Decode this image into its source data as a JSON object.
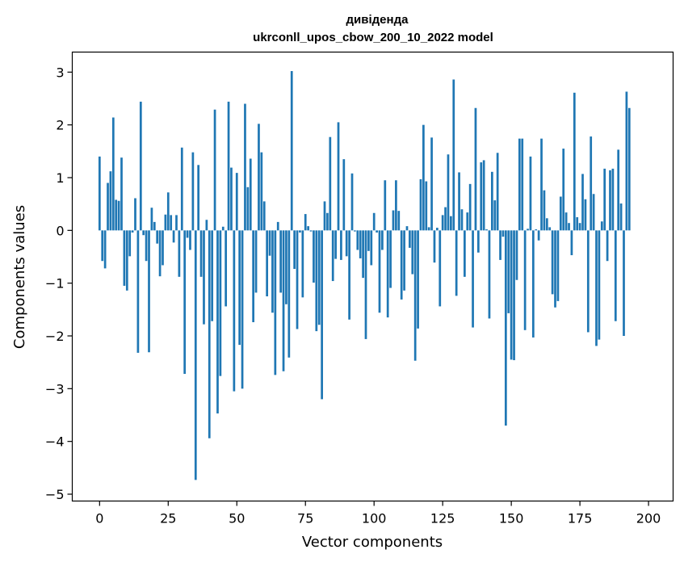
{
  "chart_data": {
    "type": "bar",
    "title": "дивіденда",
    "subtitle": "ukrconll_upos_cbow_200_10_2022 model",
    "xlabel": "Vector components",
    "ylabel": "Components values",
    "xlim": [
      -9.95,
      208.95
    ],
    "ylim": [
      -5.13,
      3.38
    ],
    "xticks": [
      0,
      25,
      50,
      75,
      100,
      125,
      150,
      175,
      200
    ],
    "xtick_labels": [
      "0",
      "25",
      "50",
      "75",
      "100",
      "125",
      "150",
      "175",
      "200"
    ],
    "yticks": [
      -5,
      -4,
      -3,
      -2,
      -1,
      0,
      1,
      2,
      3
    ],
    "ytick_labels": [
      "−5",
      "−4",
      "−3",
      "−2",
      "−1",
      "0",
      "1",
      "2",
      "3"
    ],
    "grid": false,
    "bar_color": "#1f77b4",
    "values": [
      1.4,
      -0.58,
      -0.72,
      0.9,
      1.12,
      2.14,
      0.58,
      0.56,
      1.38,
      -1.05,
      -1.14,
      -0.49,
      -0.04,
      0.61,
      -2.32,
      2.44,
      -0.09,
      -0.58,
      -2.31,
      0.43,
      0.16,
      -0.25,
      -0.87,
      -0.66,
      0.3,
      0.72,
      0.29,
      -0.23,
      0.29,
      -0.88,
      1.57,
      -2.72,
      -0.14,
      -0.37,
      1.48,
      -4.73,
      1.24,
      -0.88,
      -1.78,
      0.2,
      -3.94,
      -1.72,
      2.29,
      -3.47,
      -2.76,
      0.07,
      -1.44,
      2.44,
      1.19,
      -3.05,
      1.09,
      -2.17,
      -3.0,
      2.4,
      0.82,
      1.36,
      -1.74,
      -1.18,
      2.02,
      1.48,
      0.55,
      -1.25,
      -0.48,
      -1.56,
      -2.74,
      0.16,
      -1.18,
      -2.67,
      -1.4,
      -2.41,
      3.02,
      -0.73,
      -1.87,
      -0.04,
      -1.27,
      0.31,
      0.08,
      -0.02,
      -0.99,
      -1.91,
      -1.79,
      -3.2,
      0.55,
      0.33,
      1.77,
      -0.96,
      -0.54,
      2.05,
      -0.56,
      1.35,
      -0.49,
      -1.69,
      1.08,
      -0.02,
      -0.37,
      -0.53,
      -0.9,
      -2.06,
      -0.39,
      -0.66,
      0.33,
      -0.04,
      -1.56,
      -0.37,
      0.95,
      -1.65,
      -1.09,
      0.38,
      0.95,
      0.37,
      -1.31,
      -1.14,
      0.08,
      -0.33,
      -0.83,
      -2.47,
      -1.86,
      0.97,
      2.0,
      0.93,
      0.06,
      1.76,
      -0.61,
      0.05,
      -1.44,
      0.29,
      0.44,
      1.44,
      0.27,
      2.86,
      -1.24,
      1.1,
      0.4,
      -0.88,
      0.34,
      0.88,
      -1.84,
      2.32,
      -0.42,
      1.29,
      1.33,
      0.02,
      -1.67,
      1.11,
      0.57,
      1.47,
      -0.56,
      -0.12,
      -3.7,
      -1.57,
      -2.45,
      -2.46,
      -0.94,
      1.74,
      1.74,
      -1.89,
      0.03,
      1.4,
      -2.03,
      0.02,
      -0.19,
      1.74,
      0.76,
      0.23,
      0.06,
      -1.21,
      -1.46,
      -1.34,
      0.64,
      1.55,
      0.34,
      0.14,
      -0.47,
      2.61,
      0.25,
      0.14,
      1.07,
      0.59,
      -1.93,
      1.78,
      0.69,
      -2.19,
      -2.07,
      0.17,
      1.17,
      -0.58,
      1.14,
      1.17,
      -1.72,
      1.53,
      0.51,
      -2.0,
      2.63,
      2.32
    ]
  }
}
